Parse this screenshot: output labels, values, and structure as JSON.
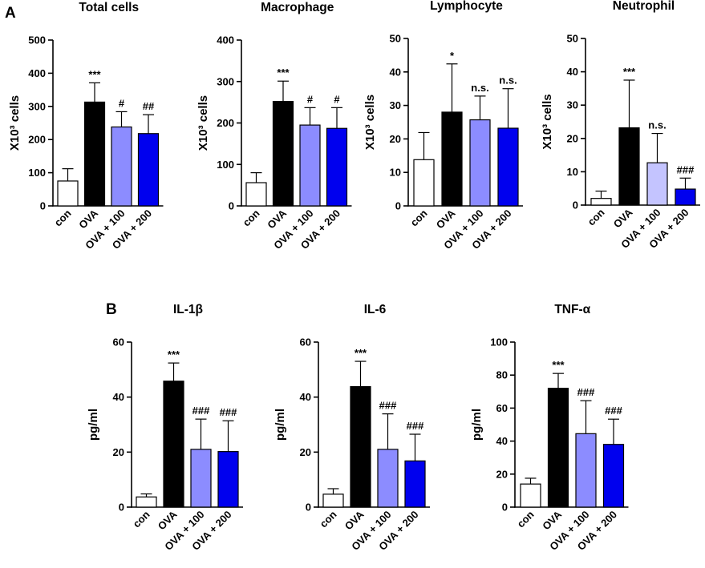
{
  "panel_labels": [
    "A",
    "B"
  ],
  "colors": {
    "con": "#ffffff",
    "OVA": "#000000",
    "OVA + 100 (panel A lymph/neut)": "#9b9bff",
    "OVA + 100": "#8c8cff",
    "OVA + 200": "#0000ee",
    "neutrophil_100": "#c4c4ff"
  },
  "chart_data": [
    {
      "type": "bar",
      "panel": "A",
      "title": "Total cells",
      "ylabel": "X10³ cells",
      "categories": [
        "con",
        "OVA",
        "OVA + 100",
        "OVA + 200"
      ],
      "values": [
        75,
        313,
        238,
        218
      ],
      "errors": [
        37,
        58,
        46,
        57
      ],
      "annotations": [
        "",
        "***",
        "#",
        "##"
      ],
      "ylim": [
        0,
        500
      ],
      "yticks": [
        0,
        100,
        200,
        300,
        400,
        500
      ],
      "bar_colors": [
        "#ffffff",
        "#000000",
        "#8c8cff",
        "#0000ee"
      ]
    },
    {
      "type": "bar",
      "panel": "A",
      "title": "Macrophage",
      "ylabel": "X10³ cells",
      "categories": [
        "con",
        "OVA",
        "OVA + 100",
        "OVA + 200"
      ],
      "values": [
        56,
        252,
        195,
        187
      ],
      "errors": [
        24,
        49,
        42,
        50
      ],
      "annotations": [
        "",
        "***",
        "#",
        "#"
      ],
      "ylim": [
        0,
        400
      ],
      "yticks": [
        0,
        100,
        200,
        300,
        400
      ],
      "bar_colors": [
        "#ffffff",
        "#000000",
        "#8c8cff",
        "#0000ee"
      ]
    },
    {
      "type": "bar",
      "panel": "A",
      "title": "Lymphocyte",
      "ylabel": "X10³ cells",
      "categories": [
        "con",
        "OVA",
        "OVA + 100",
        "OVA + 200"
      ],
      "values": [
        13.8,
        28,
        25.7,
        23.2
      ],
      "errors": [
        8.1,
        14.4,
        7.1,
        11.8
      ],
      "annotations": [
        "",
        "*",
        "n.s.",
        "n.s."
      ],
      "ylim": [
        0,
        50
      ],
      "yticks": [
        0,
        10,
        20,
        30,
        40,
        50
      ],
      "bar_colors": [
        "#ffffff",
        "#000000",
        "#8c8cff",
        "#0000ee"
      ]
    },
    {
      "type": "bar",
      "panel": "A",
      "title": "Neutrophil",
      "ylabel": "X10³ cells",
      "categories": [
        "con",
        "OVA",
        "OVA + 100",
        "OVA + 200"
      ],
      "values": [
        2,
        23.2,
        12.7,
        4.8
      ],
      "errors": [
        2.2,
        14.3,
        8.8,
        3.3
      ],
      "annotations": [
        "",
        "***",
        "n.s.",
        "###"
      ],
      "ylim": [
        0,
        50
      ],
      "yticks": [
        0,
        10,
        20,
        30,
        40,
        50
      ],
      "bar_colors": [
        "#ffffff",
        "#000000",
        "#c4c4ff",
        "#0000ee"
      ]
    },
    {
      "type": "bar",
      "panel": "B",
      "title": "IL-1β",
      "ylabel": "pg/ml",
      "categories": [
        "con",
        "OVA",
        "OVA + 100",
        "OVA + 200"
      ],
      "values": [
        3.7,
        45.8,
        21,
        20.2
      ],
      "errors": [
        1.1,
        6.6,
        11,
        11.2
      ],
      "annotations": [
        "",
        "***",
        "###",
        "###"
      ],
      "ylim": [
        0,
        60
      ],
      "yticks": [
        0,
        20,
        40,
        60
      ],
      "bar_colors": [
        "#ffffff",
        "#000000",
        "#8c8cff",
        "#0000ee"
      ]
    },
    {
      "type": "bar",
      "panel": "B",
      "title": "IL-6",
      "ylabel": "pg/ml",
      "categories": [
        "con",
        "OVA",
        "OVA + 100",
        "OVA + 200"
      ],
      "values": [
        4.7,
        43.8,
        21,
        16.8
      ],
      "errors": [
        2,
        9.2,
        12.9,
        9.7
      ],
      "annotations": [
        "",
        "***",
        "###",
        "###"
      ],
      "ylim": [
        0,
        60
      ],
      "yticks": [
        0,
        20,
        40,
        60
      ],
      "bar_colors": [
        "#ffffff",
        "#000000",
        "#8c8cff",
        "#0000ee"
      ]
    },
    {
      "type": "bar",
      "panel": "B",
      "title": "TNF-α",
      "ylabel": "pg/ml",
      "categories": [
        "con",
        "OVA",
        "OVA + 100",
        "OVA + 200"
      ],
      "values": [
        14,
        72,
        44.5,
        38
      ],
      "errors": [
        3.5,
        9,
        20,
        15.3
      ],
      "annotations": [
        "",
        "***",
        "###",
        "###"
      ],
      "ylim": [
        0,
        100
      ],
      "yticks": [
        0,
        20,
        40,
        60,
        80,
        100
      ],
      "bar_colors": [
        "#ffffff",
        "#000000",
        "#8c8cff",
        "#0000ee"
      ]
    }
  ]
}
